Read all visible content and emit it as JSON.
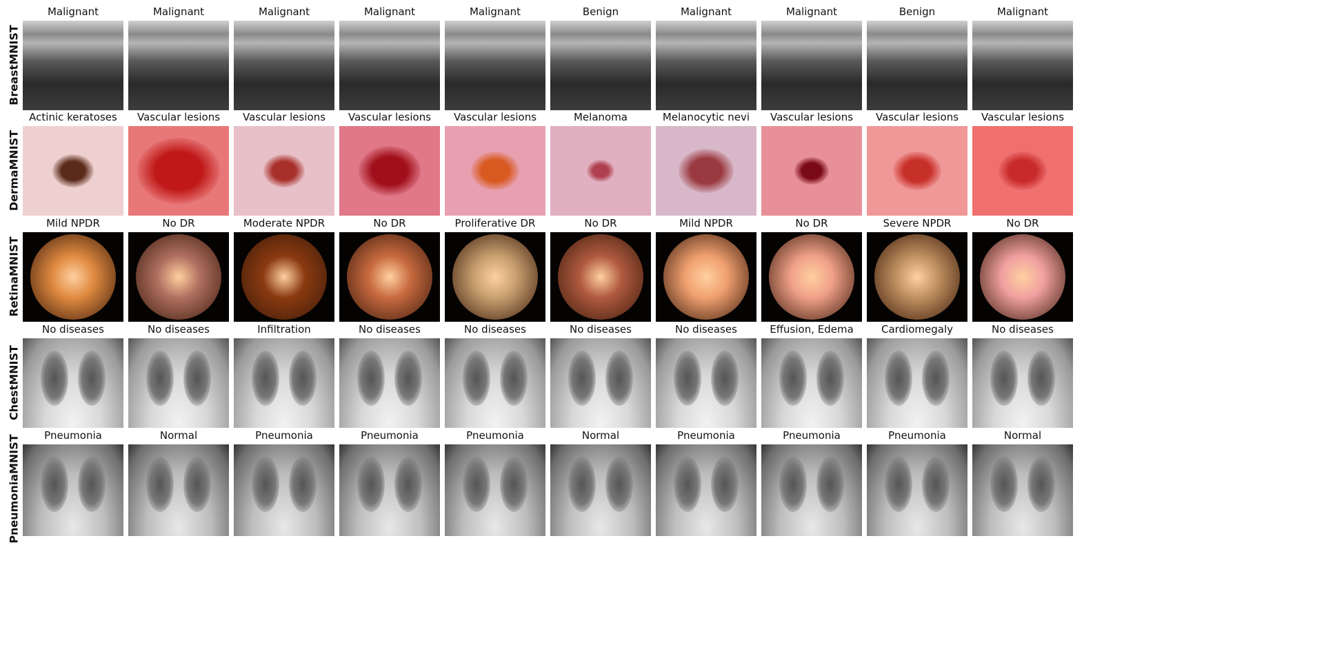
{
  "rows": [
    {
      "name": "BreastMNIST",
      "labels": [
        "Malignant",
        "Malignant",
        "Malignant",
        "Malignant",
        "Malignant",
        "Benign",
        "Malignant",
        "Malignant",
        "Benign",
        "Malignant"
      ]
    },
    {
      "name": "DermaMNIST",
      "labels": [
        "Actinic keratoses",
        "Vascular lesions",
        "Vascular lesions",
        "Vascular lesions",
        "Vascular lesions",
        "Melanoma",
        "Melanocytic nevi",
        "Vascular lesions",
        "Vascular lesions",
        "Vascular lesions"
      ]
    },
    {
      "name": "RetinaMNIST",
      "labels": [
        "Mild NPDR",
        "No DR",
        "Moderate NPDR",
        "No DR",
        "Proliferative DR",
        "No DR",
        "Mild NPDR",
        "No DR",
        "Severe NPDR",
        "No DR"
      ]
    },
    {
      "name": "ChestMNIST",
      "labels": [
        "No diseases",
        "No diseases",
        "Infiltration",
        "No diseases",
        "No diseases",
        "No diseases",
        "No diseases",
        "Effusion, Edema",
        "Cardiomegaly",
        "No diseases"
      ]
    },
    {
      "name": "PneumoniaMNIST",
      "labels": [
        "Pneumonia",
        "Normal",
        "Pneumonia",
        "Pneumonia",
        "Pneumonia",
        "Normal",
        "Pneumonia",
        "Pneumonia",
        "Pneumonia",
        "Normal"
      ]
    }
  ],
  "colors": {
    "derma_lesions": [
      "#5a2a1a",
      "#c01818",
      "#a8302a",
      "#a00f1a",
      "#d85a20",
      "#b04050",
      "#9a3a40",
      "#7a0a18",
      "#c8302a",
      "#c82a2a"
    ],
    "derma_skin": [
      "#efd0d0",
      "#e87878",
      "#e8c0c8",
      "#e07888",
      "#e8a0b0",
      "#e0b0c0",
      "#d8b8c8",
      "#e89098",
      "#f09898",
      "#f07070"
    ],
    "retina_fundus": [
      "#e08a40",
      "#b07060",
      "#8a3a10",
      "#c86a40",
      "#c8a070",
      "#b05a40",
      "#f0a070",
      "#f0a088",
      "#c09060",
      "#f0a0a0"
    ]
  }
}
